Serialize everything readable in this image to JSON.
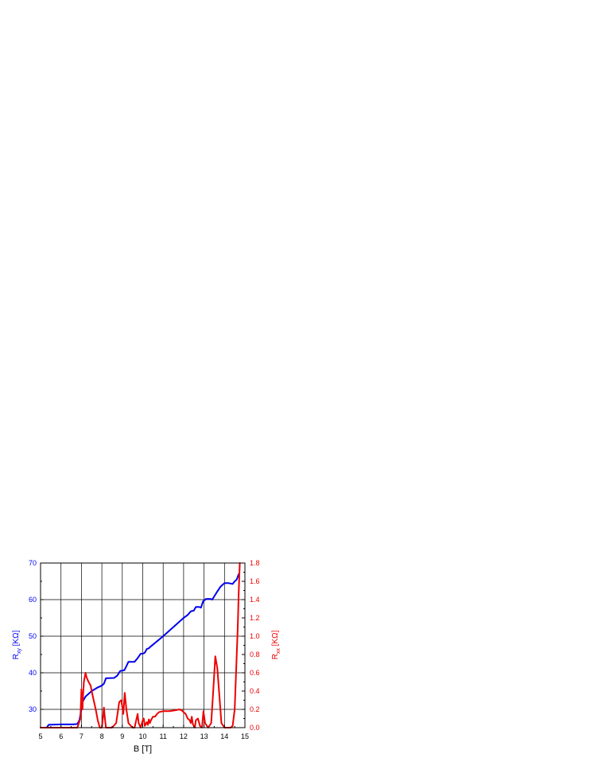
{
  "chart_data": {
    "type": "line",
    "xlabel": "B [T]",
    "ylabel_left": {
      "main": "R",
      "sub": "xy",
      "unit": " [KΩ]"
    },
    "ylabel_right": {
      "main": "R",
      "sub": "xx",
      "unit": " [KΩ]"
    },
    "xlim": [
      5,
      15
    ],
    "ylim_left": [
      25,
      70
    ],
    "ylim_right": [
      0,
      1.8
    ],
    "x_ticks": [
      "5",
      "6",
      "7",
      "8",
      "9",
      "10",
      "11",
      "12",
      "13",
      "14",
      "15"
    ],
    "y_left_ticks": [
      "30",
      "40",
      "50",
      "60",
      "70"
    ],
    "y_right_ticks": [
      "0.0",
      "0.2",
      "0.4",
      "0.6",
      "0.8",
      "1.0",
      "1.2",
      "1.4",
      "1.6",
      "1.8"
    ],
    "grid": true,
    "colors": {
      "rxy": "#0000ee",
      "rxx": "#ee0000",
      "axis": "#000000",
      "grid": "#000000"
    },
    "series": [
      {
        "axis": "left",
        "color": "#0000ee",
        "x": [
          5.0,
          5.3,
          5.4,
          6.0,
          6.6,
          6.8,
          6.9,
          7.0,
          7.05,
          7.2,
          7.5,
          7.8,
          8.0,
          8.1,
          8.2,
          8.6,
          8.75,
          8.9,
          9.1,
          9.2,
          9.3,
          9.6,
          9.75,
          9.9,
          10.05,
          10.1,
          10.2,
          10.3,
          10.35,
          11.0,
          11.5,
          12.0,
          12.2,
          12.35,
          12.5,
          12.6,
          12.75,
          12.85,
          12.95,
          13.1,
          13.3,
          13.4,
          13.6,
          13.8,
          14.0,
          14.2,
          14.4,
          14.5,
          14.6,
          14.7
        ],
        "y": [
          25.0,
          25.0,
          25.8,
          25.9,
          25.9,
          26.0,
          27.0,
          30.0,
          32.0,
          33.5,
          35.0,
          36.0,
          36.5,
          37.0,
          38.5,
          38.6,
          39.2,
          40.5,
          40.7,
          41.8,
          43.0,
          43.0,
          44.0,
          45.2,
          45.3,
          45.5,
          46.5,
          46.7,
          47.0,
          50.0,
          52.5,
          55.0,
          55.8,
          56.8,
          57.0,
          58.0,
          58.0,
          57.8,
          59.5,
          60.2,
          60.2,
          60.0,
          61.8,
          63.5,
          64.5,
          64.5,
          64.3,
          65.0,
          65.5,
          67.0
        ]
      },
      {
        "axis": "right",
        "color": "#ee0000",
        "x": [
          5.0,
          5.3,
          6.0,
          6.8,
          6.95,
          7.0,
          7.05,
          7.08,
          7.12,
          7.2,
          7.25,
          7.35,
          7.45,
          7.55,
          7.7,
          7.8,
          7.9,
          8.0,
          8.05,
          8.1,
          8.15,
          8.2,
          8.3,
          8.5,
          8.7,
          8.85,
          8.95,
          9.05,
          9.12,
          9.2,
          9.3,
          9.5,
          9.6,
          9.7,
          9.75,
          9.8,
          9.9,
          10.0,
          10.05,
          10.1,
          10.2,
          10.25,
          10.3,
          10.35,
          10.4,
          10.5,
          10.6,
          10.7,
          10.8,
          11.0,
          11.3,
          11.6,
          11.8,
          11.9,
          12.0,
          12.1,
          12.2,
          12.3,
          12.35,
          12.4,
          12.45,
          12.55,
          12.6,
          12.7,
          12.8,
          12.9,
          12.97,
          13.05,
          13.2,
          13.35,
          13.45,
          13.55,
          13.65,
          13.75,
          13.85,
          14.0,
          14.3,
          14.4,
          14.5,
          14.55,
          14.6,
          14.65,
          14.7,
          14.75
        ],
        "y": [
          0.0,
          0.0,
          0.0,
          0.0,
          0.1,
          0.42,
          0.2,
          0.35,
          0.5,
          0.6,
          0.55,
          0.5,
          0.46,
          0.35,
          0.2,
          0.08,
          0.0,
          0.0,
          0.1,
          0.22,
          0.1,
          0.0,
          0.0,
          0.0,
          0.05,
          0.28,
          0.3,
          0.15,
          0.38,
          0.2,
          0.05,
          0.0,
          0.0,
          0.1,
          0.15,
          0.05,
          0.0,
          0.08,
          0.1,
          0.02,
          0.06,
          0.03,
          0.09,
          0.05,
          0.08,
          0.12,
          0.12,
          0.15,
          0.17,
          0.18,
          0.18,
          0.19,
          0.2,
          0.19,
          0.17,
          0.15,
          0.1,
          0.08,
          0.05,
          0.12,
          0.04,
          0.0,
          0.08,
          0.1,
          0.02,
          0.0,
          0.18,
          0.05,
          0.0,
          0.05,
          0.4,
          0.78,
          0.65,
          0.35,
          0.05,
          0.0,
          0.0,
          0.02,
          0.2,
          0.5,
          0.8,
          1.1,
          1.5,
          1.8
        ]
      }
    ]
  }
}
